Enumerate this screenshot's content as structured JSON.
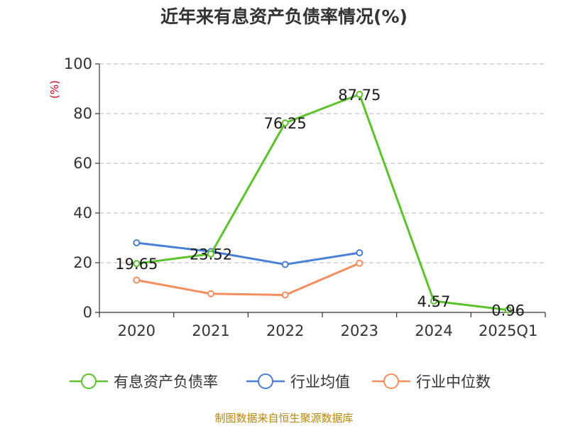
{
  "title": "近年来有息资产负债率情况(%)",
  "source": "制图数据来自恒生聚源数据库",
  "chart_data": {
    "type": "line",
    "title": "近年来有息资产负债率情况(%)",
    "ylabel": "(%)",
    "xlabel": "",
    "categories": [
      "2020",
      "2021",
      "2022",
      "2023",
      "2024",
      "2025Q1"
    ],
    "ylim": [
      0,
      100
    ],
    "yticks": [
      0,
      20,
      40,
      60,
      80,
      100
    ],
    "grid": true,
    "legend_position": "bottom",
    "series": [
      {
        "name": "有息资产负债率",
        "color": "#5cc22c",
        "values": [
          19.65,
          23.52,
          76.25,
          87.75,
          4.57,
          0.96
        ],
        "labels": [
          "19.65",
          "23.52",
          "76.25",
          "87.75",
          "4.57",
          "0.96"
        ]
      },
      {
        "name": "行业均值",
        "color": "#4a7fd8",
        "values": [
          28.0,
          24.5,
          19.3,
          24.0,
          null,
          null
        ]
      },
      {
        "name": "行业中位数",
        "color": "#f58d5e",
        "values": [
          13.0,
          7.5,
          7.0,
          19.8,
          null,
          null
        ]
      }
    ]
  }
}
